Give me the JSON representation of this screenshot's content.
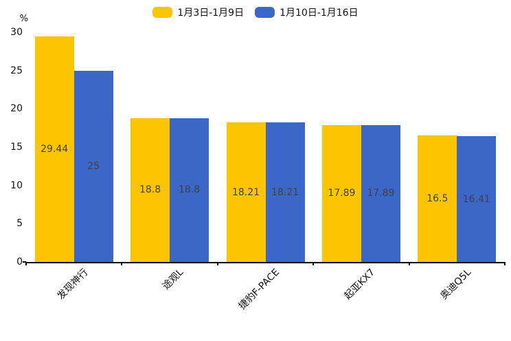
{
  "chart_data": {
    "type": "bar",
    "title": "",
    "categories": [
      "发现神行",
      "途观L",
      "捷豹F-PACE",
      "起亚KX7",
      "奥迪Q5L"
    ],
    "series": [
      {
        "name": "1月3日-1月9日",
        "color": "#FDC500",
        "values": [
          29.44,
          18.8,
          18.21,
          17.89,
          16.5
        ]
      },
      {
        "name": "1月10日-1月16日",
        "color": "#3A67C8",
        "values": [
          25,
          18.8,
          18.21,
          17.89,
          16.41
        ]
      }
    ],
    "xlabel": "",
    "ylabel": "%",
    "ylim": [
      0,
      30
    ],
    "yticks": [
      0,
      5,
      10,
      15,
      20,
      25,
      30
    ],
    "grid": false,
    "legend_position": "top",
    "value_label_position": "inside-center",
    "x_tick_label_rotation_deg": 45
  },
  "colors": {
    "background": "#FFFFFF",
    "axis": "#000000",
    "tick_label": "#111111",
    "value_label": "#404040"
  }
}
